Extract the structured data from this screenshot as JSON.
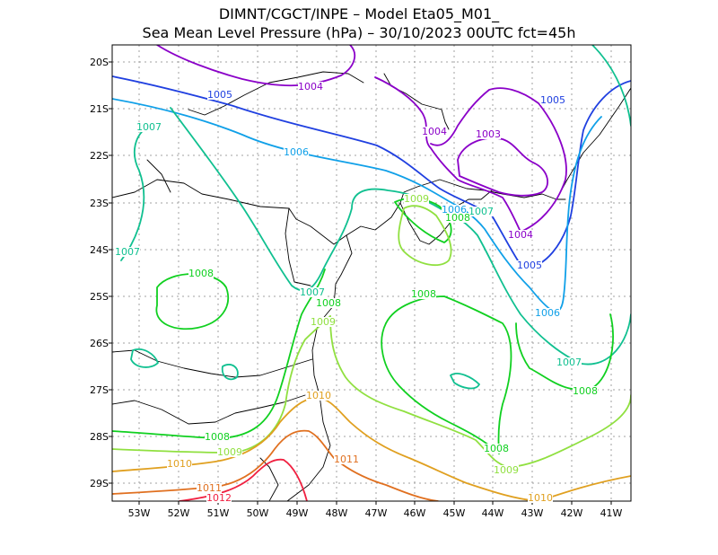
{
  "title": {
    "line1": "DIMNT/CGCT/INPE –  Model Eta05_M01_",
    "line2": "Sea Mean Level Pressure (hPa) – 30/10/2023 00UTC fct=45h"
  },
  "axes": {
    "lon_labels": [
      "53W",
      "52W",
      "51W",
      "50W",
      "49W",
      "48W",
      "47W",
      "46W",
      "45W",
      "44W",
      "43W",
      "42W",
      "41W"
    ],
    "lat_labels": [
      "20S",
      "21S",
      "22S",
      "23S",
      "24S",
      "25S",
      "26S",
      "27S",
      "28S",
      "29S"
    ]
  },
  "contour_labels": [
    {
      "text": "1004",
      "color": "#8a00c8"
    },
    {
      "text": "1005",
      "color": "#2040e0"
    },
    {
      "text": "1005",
      "color": "#2040e0"
    },
    {
      "text": "1007",
      "color": "#10c090"
    },
    {
      "text": "1006",
      "color": "#10a0e8"
    },
    {
      "text": "1004",
      "color": "#8a00c8"
    },
    {
      "text": "1003",
      "color": "#8a00c8"
    },
    {
      "text": "1009",
      "color": "#90e040"
    },
    {
      "text": "1006",
      "color": "#10a0e8"
    },
    {
      "text": "1007",
      "color": "#10c090"
    },
    {
      "text": "1008",
      "color": "#10d020"
    },
    {
      "text": "1004",
      "color": "#8a00c8"
    },
    {
      "text": "1007",
      "color": "#10c090"
    },
    {
      "text": "1005",
      "color": "#2040e0"
    },
    {
      "text": "1008",
      "color": "#10d020"
    },
    {
      "text": "1007",
      "color": "#10c090"
    },
    {
      "text": "1008",
      "color": "#10d020"
    },
    {
      "text": "1008",
      "color": "#10d020"
    },
    {
      "text": "1009",
      "color": "#90e040"
    },
    {
      "text": "1006",
      "color": "#10a0e8"
    },
    {
      "text": "1007",
      "color": "#10c090"
    },
    {
      "text": "1008",
      "color": "#10d020"
    },
    {
      "text": "1010",
      "color": "#e0a020"
    },
    {
      "text": "1008",
      "color": "#10d020"
    },
    {
      "text": "1009",
      "color": "#90e040"
    },
    {
      "text": "1008",
      "color": "#10d020"
    },
    {
      "text": "1011",
      "color": "#e07020"
    },
    {
      "text": "1010",
      "color": "#e0a020"
    },
    {
      "text": "1009",
      "color": "#90e040"
    },
    {
      "text": "1011",
      "color": "#e07020"
    },
    {
      "text": "1012",
      "color": "#f02040"
    },
    {
      "text": "1010",
      "color": "#e0a020"
    }
  ],
  "colors": {
    "p1003": "#8a00c8",
    "p1004": "#8a00c8",
    "p1005": "#2040e0",
    "p1006": "#10a0e8",
    "p1007": "#10c090",
    "p1008": "#10d020",
    "p1009": "#90e040",
    "p1010": "#e0a020",
    "p1011": "#e07020",
    "p1012": "#f02040",
    "coast": "#000000",
    "grid": "#a0a0a0"
  }
}
